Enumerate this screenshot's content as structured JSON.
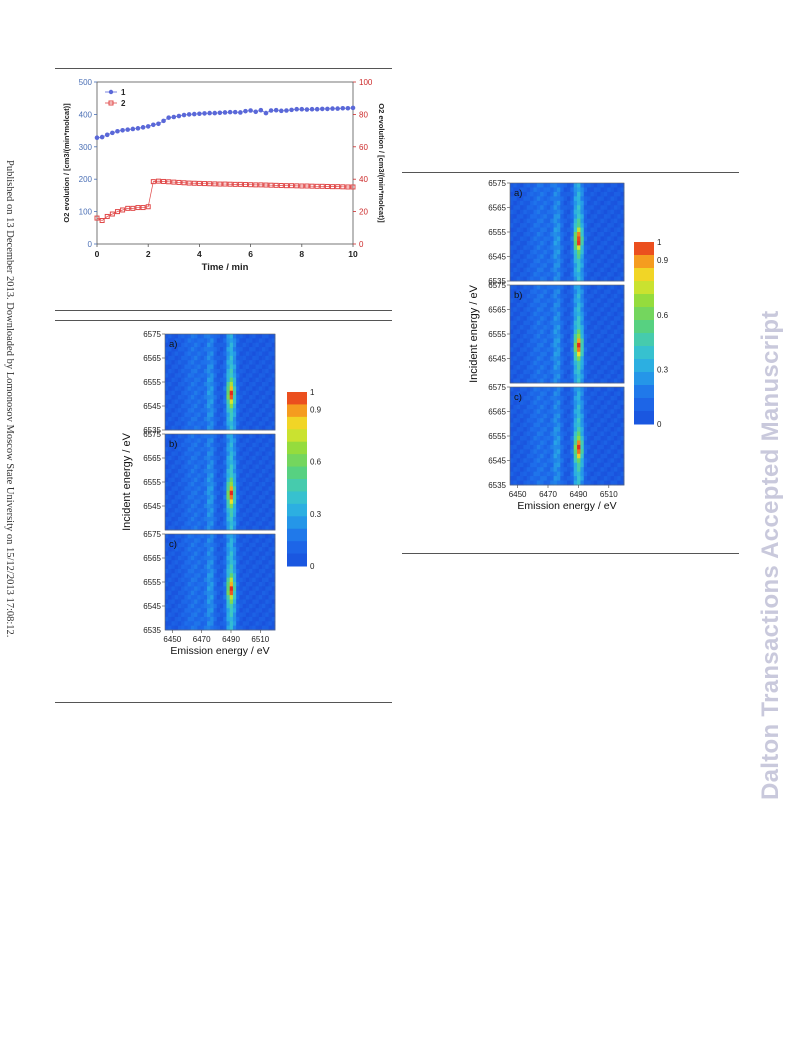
{
  "sidebar": {
    "published_note": "Published on 13 December 2013. Downloaded by Lomonosov Moscow State University on 15/12/2013 17:08:12."
  },
  "watermark": {
    "text": "Dalton Transactions Accepted Manuscript"
  },
  "chart_data": [
    {
      "type": "scatter",
      "title": "",
      "xlabel": "Time / min",
      "ylabel_left": "O2 evolution / [cm3/(min*molcat)]",
      "ylabel_right": "O2 evolution / [cm3/(min*molcat)]",
      "xlim": [
        0,
        10
      ],
      "ylim_left": [
        0,
        500
      ],
      "ylim_right": [
        0,
        100
      ],
      "x_ticks": [
        "0",
        "2",
        "4",
        "6",
        "8",
        "10"
      ],
      "y_ticks_left": [
        "0",
        "100",
        "200",
        "300",
        "400",
        "500"
      ],
      "y_ticks_right": [
        "0",
        "20",
        "40",
        "60",
        "80",
        "100"
      ],
      "legend_position": "top-left",
      "colors": {
        "series1": "#5a68d8",
        "series2": "#e04848",
        "axis_left": "#4a6fb5",
        "axis_right": "#cc2a2a"
      },
      "series": [
        {
          "name": "1",
          "axis": "left",
          "x": [
            0,
            0.2,
            0.4,
            0.6,
            0.8,
            1.0,
            1.2,
            1.4,
            1.6,
            1.8,
            2.0,
            2.2,
            2.4,
            2.6,
            2.8,
            3.0,
            3.2,
            3.4,
            3.6,
            3.8,
            4.0,
            4.2,
            4.4,
            4.6,
            4.8,
            5.0,
            5.2,
            5.4,
            5.6,
            5.8,
            6.0,
            6.2,
            6.4,
            6.6,
            6.8,
            7.0,
            7.2,
            7.4,
            7.6,
            7.8,
            8.0,
            8.2,
            8.4,
            8.6,
            8.8,
            9.0,
            9.2,
            9.4,
            9.6,
            9.8,
            10.0
          ],
          "y": [
            328,
            330,
            337,
            343,
            348,
            351,
            353,
            355,
            357,
            360,
            363,
            368,
            371,
            380,
            390,
            392,
            395,
            398,
            400,
            401,
            402,
            403,
            404,
            404,
            405,
            406,
            407,
            407,
            406,
            410,
            412,
            408,
            413,
            404,
            412,
            413,
            411,
            412,
            414,
            416,
            416,
            415,
            416,
            416,
            417,
            417,
            418,
            418,
            419,
            419,
            420
          ]
        },
        {
          "name": "2",
          "axis": "right",
          "x": [
            0,
            0.2,
            0.4,
            0.6,
            0.8,
            1.0,
            1.2,
            1.4,
            1.6,
            1.8,
            2.0,
            2.2,
            2.4,
            2.6,
            2.8,
            3.0,
            3.2,
            3.4,
            3.6,
            3.8,
            4.0,
            4.2,
            4.4,
            4.6,
            4.8,
            5.0,
            5.2,
            5.4,
            5.6,
            5.8,
            6.0,
            6.2,
            6.4,
            6.6,
            6.8,
            7.0,
            7.2,
            7.4,
            7.6,
            7.8,
            8.0,
            8.2,
            8.4,
            8.6,
            8.8,
            9.0,
            9.2,
            9.4,
            9.6,
            9.8,
            10.0
          ],
          "y": [
            16,
            14.5,
            17,
            18.5,
            20,
            21,
            22,
            22,
            22.5,
            22.5,
            23,
            38.5,
            38.8,
            38.6,
            38.4,
            38.2,
            38,
            37.8,
            37.6,
            37.5,
            37.4,
            37.3,
            37.2,
            37.1,
            37,
            37,
            36.9,
            36.8,
            36.8,
            36.7,
            36.6,
            36.5,
            36.5,
            36.4,
            36.3,
            36.2,
            36.1,
            36,
            36,
            35.9,
            35.8,
            35.8,
            35.7,
            35.6,
            35.6,
            35.5,
            35.4,
            35.4,
            35.3,
            35.2,
            35.2
          ]
        }
      ]
    },
    {
      "type": "heatmap",
      "panels": [
        "a)",
        "b)",
        "c)"
      ],
      "xlabel": "Emission energy / eV",
      "ylabel": "Incident energy / eV",
      "x_ticks": [
        "6450",
        "6470",
        "6490",
        "6510"
      ],
      "y_ticks_panel_a": [
        "6575",
        "6565",
        "6555",
        "6545",
        "6535"
      ],
      "y_ticks_panel": [
        "6575",
        "6565",
        "6555",
        "6545"
      ],
      "y_tick_bottom": "6535",
      "colorbar_ticks": [
        "1",
        "0.9",
        "0.6",
        "0.3",
        "0"
      ],
      "peaks": [
        {
          "panel": "a)",
          "main": {
            "emission": 6490,
            "incident": 6550
          },
          "weak": {
            "emission": 6476
          }
        },
        {
          "panel": "b)",
          "main": {
            "emission": 6490,
            "incident": 6550
          },
          "weak": {
            "emission": 6476
          }
        },
        {
          "panel": "c)",
          "main": {
            "emission": 6490,
            "incident": 6552
          },
          "weak": {
            "emission": 6476
          }
        }
      ]
    },
    {
      "type": "heatmap",
      "panels": [
        "a)",
        "b)",
        "c)"
      ],
      "xlabel": "Emission energy / eV",
      "ylabel": "Incident energy / eV",
      "x_ticks": [
        "6450",
        "6470",
        "6490",
        "6510"
      ],
      "y_ticks_panel_a": [
        "6575",
        "6565",
        "6555",
        "6545",
        "6535"
      ],
      "y_ticks_panel": [
        "6575",
        "6565",
        "6555",
        "6545"
      ],
      "y_tick_bottom": "6535",
      "colorbar_ticks": [
        "1",
        "0.9",
        "0.6",
        "0.3",
        "0"
      ],
      "peaks": [
        {
          "panel": "a)",
          "main": {
            "emission": 6490,
            "incident": 6552
          },
          "weak": {
            "emission": 6476
          }
        },
        {
          "panel": "b)",
          "main": {
            "emission": 6490,
            "incident": 6550
          },
          "weak": {
            "emission": 6476
          }
        },
        {
          "panel": "c)",
          "main": {
            "emission": 6490,
            "incident": 6550
          },
          "weak": {
            "emission": 6476
          }
        }
      ]
    }
  ]
}
